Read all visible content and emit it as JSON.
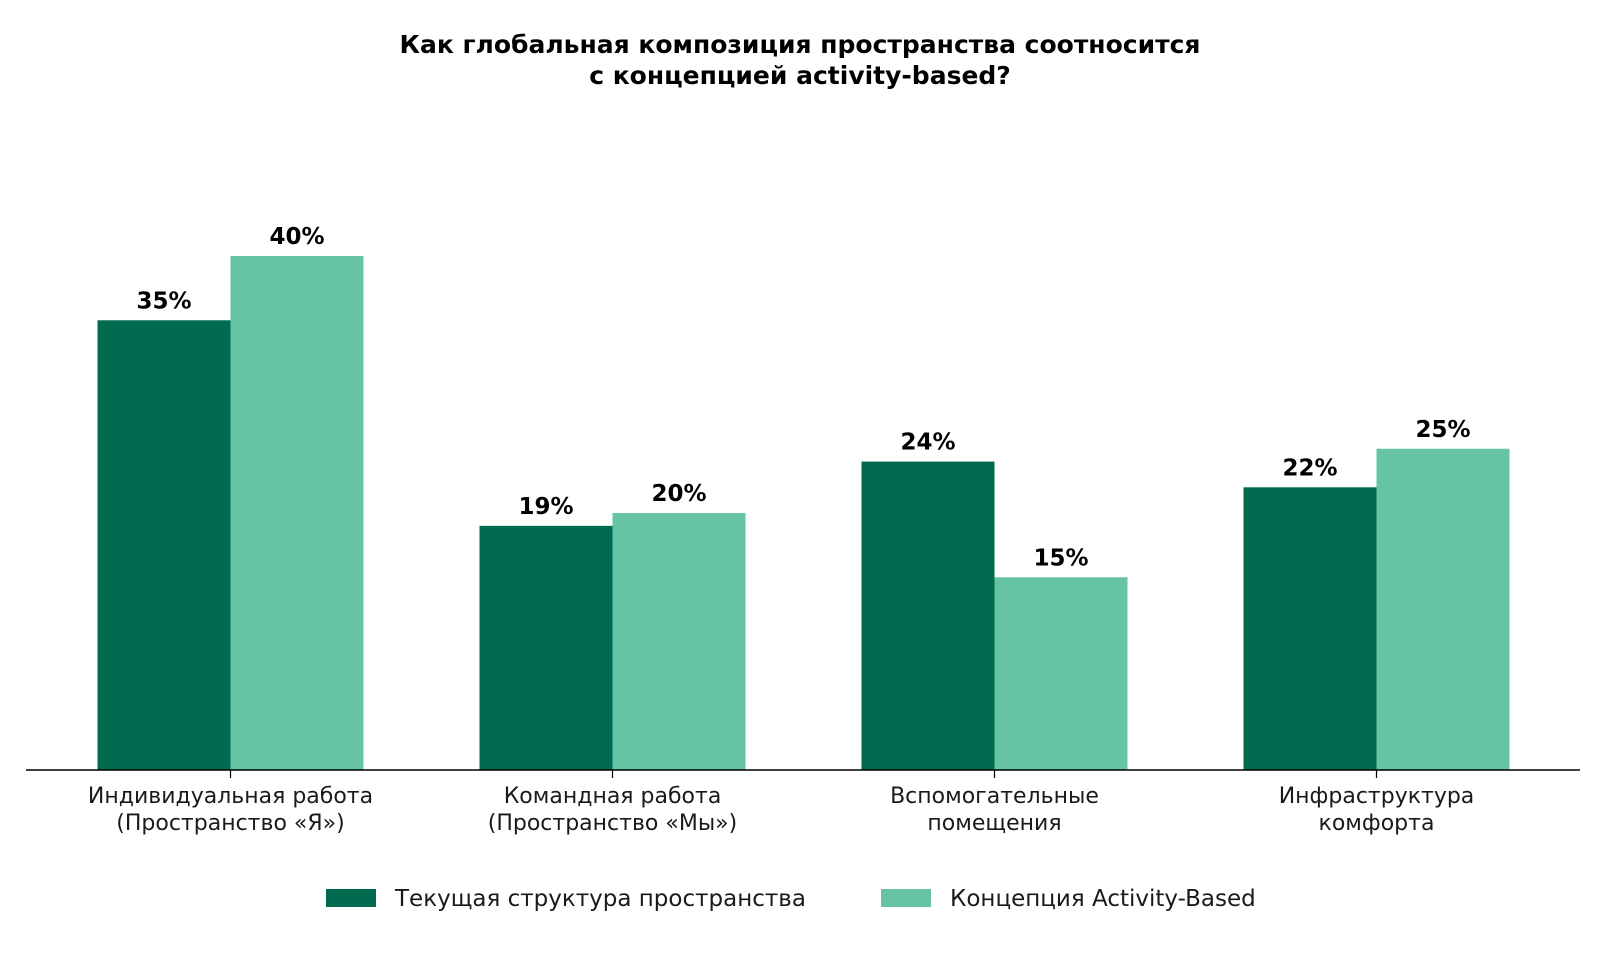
{
  "chart_data": {
    "type": "bar",
    "title": [
      "Как глобальная композиция пространства соотносится",
      "с концепцией activity-based?"
    ],
    "categories": [
      [
        "Индивидуальная работа",
        "(Пространство «Я»)"
      ],
      [
        "Командная работа",
        "(Пространство «Мы»)"
      ],
      [
        "Вспомогательные",
        "помещения"
      ],
      [
        "Инфраструктура",
        "комфорта"
      ]
    ],
    "series": [
      {
        "name": "Текущая структура пространства",
        "color": "#006b4f",
        "values": [
          35,
          19,
          24,
          22
        ],
        "labels": [
          "35%",
          "19%",
          "24%",
          "22%"
        ]
      },
      {
        "name": "Концепция Activity-Based",
        "color": "#66c4a5",
        "values": [
          40,
          20,
          15,
          25
        ],
        "labels": [
          "40%",
          "20%",
          "15%",
          "25%"
        ]
      }
    ],
    "ylim": [
      0,
      48
    ],
    "grid": false,
    "legend": "bottom-center"
  }
}
